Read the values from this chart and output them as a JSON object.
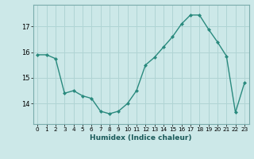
{
  "x": [
    0,
    1,
    2,
    3,
    4,
    5,
    6,
    7,
    8,
    9,
    10,
    11,
    12,
    13,
    14,
    15,
    16,
    17,
    18,
    19,
    20,
    21,
    22,
    23
  ],
  "y": [
    15.9,
    15.9,
    15.75,
    14.4,
    14.5,
    14.3,
    14.2,
    13.7,
    13.6,
    13.7,
    14.0,
    14.5,
    15.5,
    15.8,
    16.2,
    16.6,
    17.1,
    17.45,
    17.45,
    16.9,
    16.4,
    15.85,
    13.65,
    14.8
  ],
  "xlabel": "Humidex (Indice chaleur)",
  "ylim": [
    13.2,
    17.85
  ],
  "xlim": [
    -0.5,
    23.5
  ],
  "yticks": [
    14,
    15,
    16,
    17
  ],
  "xticks": [
    0,
    1,
    2,
    3,
    4,
    5,
    6,
    7,
    8,
    9,
    10,
    11,
    12,
    13,
    14,
    15,
    16,
    17,
    18,
    19,
    20,
    21,
    22,
    23
  ],
  "line_color": "#2a8a7e",
  "marker_color": "#2a8a7e",
  "bg_color": "#cce8e8",
  "grid_color": "#b0d4d4",
  "fig_bg": "#cce8e8"
}
